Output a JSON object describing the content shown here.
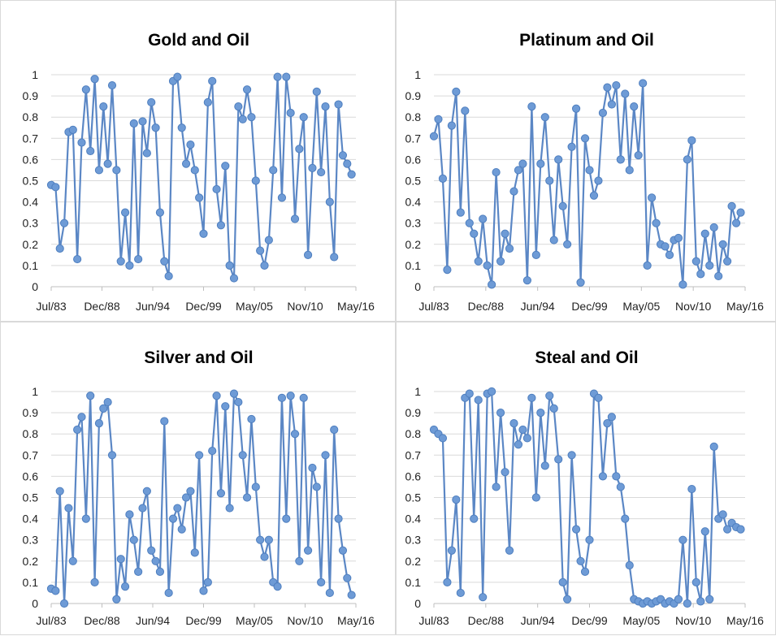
{
  "colors": {
    "series": "#5b87c5",
    "marker": "#6e9bd6",
    "grid": "#d9d9d9"
  },
  "chart_data": [
    {
      "type": "line",
      "title": "Gold and Oil",
      "xlabel": "",
      "ylabel": "",
      "ylim": [
        0,
        1
      ],
      "grid": true,
      "legend": "none",
      "xticks": [
        "Jul/83",
        "Dec/88",
        "Jun/94",
        "Dec/99",
        "May/05",
        "Nov/10",
        "May/16"
      ],
      "yticks": [
        "0",
        "0.1",
        "0.2",
        "0.3",
        "0.4",
        "0.5",
        "0.6",
        "0.7",
        "0.8",
        "0.9",
        "1"
      ],
      "x_range": [
        1983.5,
        2018.5
      ],
      "x": [
        1983.5,
        1984.0,
        1984.5,
        1985.0,
        1985.5,
        1986.0,
        1986.5,
        1987.0,
        1987.5,
        1988.0,
        1988.5,
        1989.0,
        1989.5,
        1990.0,
        1990.5,
        1991.0,
        1991.5,
        1992.0,
        1992.5,
        1993.0,
        1993.5,
        1994.0,
        1994.5,
        1995.0,
        1995.5,
        1996.0,
        1996.5,
        1997.0,
        1997.5,
        1998.0,
        1998.5,
        1999.0,
        1999.5,
        2000.0,
        2000.5,
        2001.0,
        2001.5,
        2002.0,
        2002.5,
        2003.0,
        2003.5,
        2004.0,
        2004.5,
        2005.0,
        2005.5,
        2006.0,
        2006.5,
        2007.0,
        2007.5,
        2008.0,
        2008.5,
        2009.0,
        2009.5,
        2010.0,
        2010.5,
        2011.0,
        2011.5,
        2012.0,
        2012.5,
        2013.0,
        2013.5,
        2014.0,
        2014.5,
        2015.0,
        2015.5,
        2016.0,
        2016.5,
        2017.0,
        2017.5,
        2018.0
      ],
      "values": [
        0.48,
        0.47,
        0.18,
        0.3,
        0.73,
        0.74,
        0.13,
        0.68,
        0.93,
        0.64,
        0.98,
        0.55,
        0.85,
        0.58,
        0.95,
        0.55,
        0.12,
        0.35,
        0.1,
        0.77,
        0.13,
        0.78,
        0.63,
        0.87,
        0.75,
        0.35,
        0.12,
        0.05,
        0.97,
        0.99,
        0.75,
        0.58,
        0.67,
        0.55,
        0.42,
        0.25,
        0.87,
        0.97,
        0.46,
        0.29,
        0.57,
        0.1,
        0.04,
        0.85,
        0.79,
        0.93,
        0.8,
        0.5,
        0.17,
        0.1,
        0.22,
        0.55,
        0.99,
        0.42,
        0.99,
        0.82,
        0.32,
        0.65,
        0.8,
        0.15,
        0.56,
        0.92,
        0.54,
        0.85,
        0.4,
        0.14,
        0.86,
        0.62,
        0.58,
        0.53
      ]
    },
    {
      "type": "line",
      "title": "Platinum and Oil",
      "xlabel": "",
      "ylabel": "",
      "ylim": [
        0,
        1
      ],
      "grid": true,
      "legend": "none",
      "xticks": [
        "Jul/83",
        "Dec/88",
        "Jun/94",
        "Dec/99",
        "May/05",
        "Nov/10",
        "May/16"
      ],
      "yticks": [
        "0",
        "0.1",
        "0.2",
        "0.3",
        "0.4",
        "0.5",
        "0.6",
        "0.7",
        "0.8",
        "0.9",
        "1"
      ],
      "x_range": [
        1983.5,
        2018.5
      ],
      "x": [
        1983.5,
        1984.0,
        1984.5,
        1985.0,
        1985.5,
        1986.0,
        1986.5,
        1987.0,
        1987.5,
        1988.0,
        1988.5,
        1989.0,
        1989.5,
        1990.0,
        1990.5,
        1991.0,
        1991.5,
        1992.0,
        1992.5,
        1993.0,
        1993.5,
        1994.0,
        1994.5,
        1995.0,
        1995.5,
        1996.0,
        1996.5,
        1997.0,
        1997.5,
        1998.0,
        1998.5,
        1999.0,
        1999.5,
        2000.0,
        2000.5,
        2001.0,
        2001.5,
        2002.0,
        2002.5,
        2003.0,
        2003.5,
        2004.0,
        2004.5,
        2005.0,
        2005.5,
        2006.0,
        2006.5,
        2007.0,
        2007.5,
        2008.0,
        2008.5,
        2009.0,
        2009.5,
        2010.0,
        2010.5,
        2011.0,
        2011.5,
        2012.0,
        2012.5,
        2013.0,
        2013.5,
        2014.0,
        2014.5,
        2015.0,
        2015.5,
        2016.0,
        2016.5,
        2017.0,
        2017.5,
        2018.0
      ],
      "values": [
        0.71,
        0.79,
        0.51,
        0.08,
        0.76,
        0.92,
        0.35,
        0.83,
        0.3,
        0.25,
        0.12,
        0.32,
        0.1,
        0.01,
        0.54,
        0.12,
        0.25,
        0.18,
        0.45,
        0.55,
        0.58,
        0.03,
        0.85,
        0.15,
        0.58,
        0.8,
        0.5,
        0.22,
        0.6,
        0.38,
        0.2,
        0.66,
        0.84,
        0.02,
        0.7,
        0.55,
        0.43,
        0.5,
        0.82,
        0.94,
        0.86,
        0.95,
        0.6,
        0.91,
        0.55,
        0.85,
        0.62,
        0.96,
        0.1,
        0.42,
        0.3,
        0.2,
        0.19,
        0.15,
        0.22,
        0.23,
        0.01,
        0.6,
        0.69,
        0.12,
        0.06,
        0.25,
        0.1,
        0.28,
        0.05,
        0.2,
        0.12,
        0.38,
        0.3,
        0.35
      ]
    },
    {
      "type": "line",
      "title": "Silver and Oil",
      "xlabel": "",
      "ylabel": "",
      "ylim": [
        0,
        1
      ],
      "grid": true,
      "legend": "none",
      "xticks": [
        "Jul/83",
        "Dec/88",
        "Jun/94",
        "Dec/99",
        "May/05",
        "Nov/10",
        "May/16"
      ],
      "yticks": [
        "0",
        "0.1",
        "0.2",
        "0.3",
        "0.4",
        "0.5",
        "0.6",
        "0.7",
        "0.8",
        "0.9",
        "1"
      ],
      "x_range": [
        1983.5,
        2018.5
      ],
      "x": [
        1983.5,
        1984.0,
        1984.5,
        1985.0,
        1985.5,
        1986.0,
        1986.5,
        1987.0,
        1987.5,
        1988.0,
        1988.5,
        1989.0,
        1989.5,
        1990.0,
        1990.5,
        1991.0,
        1991.5,
        1992.0,
        1992.5,
        1993.0,
        1993.5,
        1994.0,
        1994.5,
        1995.0,
        1995.5,
        1996.0,
        1996.5,
        1997.0,
        1997.5,
        1998.0,
        1998.5,
        1999.0,
        1999.5,
        2000.0,
        2000.5,
        2001.0,
        2001.5,
        2002.0,
        2002.5,
        2003.0,
        2003.5,
        2004.0,
        2004.5,
        2005.0,
        2005.5,
        2006.0,
        2006.5,
        2007.0,
        2007.5,
        2008.0,
        2008.5,
        2009.0,
        2009.5,
        2010.0,
        2010.5,
        2011.0,
        2011.5,
        2012.0,
        2012.5,
        2013.0,
        2013.5,
        2014.0,
        2014.5,
        2015.0,
        2015.5,
        2016.0,
        2016.5,
        2017.0,
        2017.5,
        2018.0
      ],
      "values": [
        0.07,
        0.06,
        0.53,
        0.0,
        0.45,
        0.2,
        0.82,
        0.88,
        0.4,
        0.98,
        0.1,
        0.85,
        0.92,
        0.95,
        0.7,
        0.02,
        0.21,
        0.08,
        0.42,
        0.3,
        0.15,
        0.45,
        0.53,
        0.25,
        0.2,
        0.15,
        0.86,
        0.05,
        0.4,
        0.45,
        0.35,
        0.5,
        0.53,
        0.24,
        0.7,
        0.06,
        0.1,
        0.72,
        0.98,
        0.52,
        0.93,
        0.45,
        0.99,
        0.95,
        0.7,
        0.5,
        0.87,
        0.55,
        0.3,
        0.22,
        0.3,
        0.1,
        0.08,
        0.97,
        0.4,
        0.98,
        0.8,
        0.2,
        0.97,
        0.25,
        0.64,
        0.55,
        0.1,
        0.7,
        0.05,
        0.82,
        0.4,
        0.25,
        0.12,
        0.04
      ]
    },
    {
      "type": "line",
      "title": "Steal and Oil",
      "xlabel": "",
      "ylabel": "",
      "ylim": [
        0,
        1
      ],
      "grid": true,
      "legend": "none",
      "xticks": [
        "Jul/83",
        "Dec/88",
        "Jun/94",
        "Dec/99",
        "May/05",
        "Nov/10",
        "May/16"
      ],
      "yticks": [
        "0",
        "0.1",
        "0.2",
        "0.3",
        "0.4",
        "0.5",
        "0.6",
        "0.7",
        "0.8",
        "0.9",
        "1"
      ],
      "x_range": [
        1983.5,
        2018.5
      ],
      "x": [
        1983.5,
        1984.0,
        1984.5,
        1985.0,
        1985.5,
        1986.0,
        1986.5,
        1987.0,
        1987.5,
        1988.0,
        1988.5,
        1989.0,
        1989.5,
        1990.0,
        1990.5,
        1991.0,
        1991.5,
        1992.0,
        1992.5,
        1993.0,
        1993.5,
        1994.0,
        1994.5,
        1995.0,
        1995.5,
        1996.0,
        1996.5,
        1997.0,
        1997.5,
        1998.0,
        1998.5,
        1999.0,
        1999.5,
        2000.0,
        2000.5,
        2001.0,
        2001.5,
        2002.0,
        2002.5,
        2003.0,
        2003.5,
        2004.0,
        2004.5,
        2005.0,
        2005.5,
        2006.0,
        2006.5,
        2007.0,
        2007.5,
        2008.0,
        2008.5,
        2009.0,
        2009.5,
        2010.0,
        2010.5,
        2011.0,
        2011.5,
        2012.0,
        2012.5,
        2013.0,
        2013.5,
        2014.0,
        2014.5,
        2015.0,
        2015.5,
        2016.0,
        2016.5,
        2017.0,
        2017.5,
        2018.0
      ],
      "values": [
        0.82,
        0.8,
        0.78,
        0.1,
        0.25,
        0.49,
        0.05,
        0.97,
        0.99,
        0.4,
        0.96,
        0.03,
        0.99,
        1.0,
        0.55,
        0.9,
        0.62,
        0.25,
        0.85,
        0.75,
        0.82,
        0.78,
        0.97,
        0.5,
        0.9,
        0.65,
        0.98,
        0.92,
        0.68,
        0.1,
        0.02,
        0.7,
        0.35,
        0.2,
        0.15,
        0.3,
        0.99,
        0.97,
        0.6,
        0.85,
        0.88,
        0.6,
        0.55,
        0.4,
        0.18,
        0.02,
        0.01,
        0.0,
        0.01,
        0.0,
        0.01,
        0.02,
        0.0,
        0.01,
        0.0,
        0.02,
        0.3,
        0.0,
        0.54,
        0.1,
        0.01,
        0.34,
        0.02,
        0.74,
        0.4,
        0.42,
        0.35,
        0.38,
        0.36,
        0.35
      ]
    }
  ]
}
